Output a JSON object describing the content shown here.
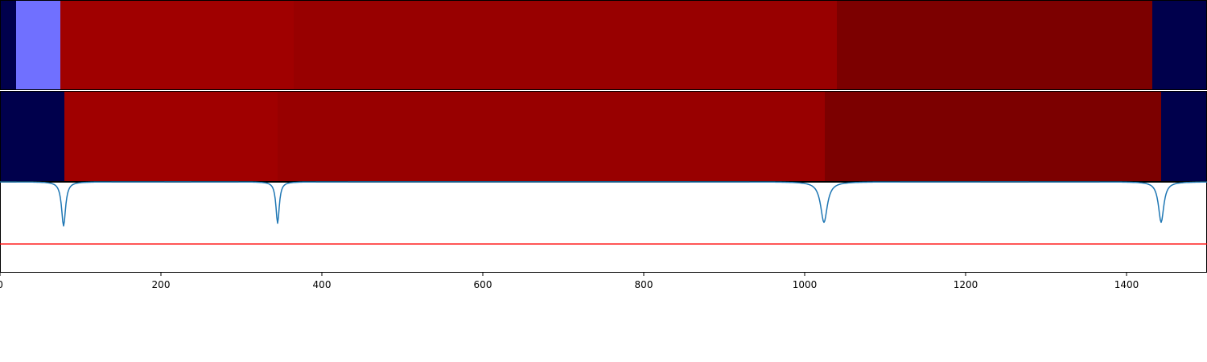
{
  "chart_data": [
    {
      "type": "heatmap",
      "title": "",
      "xlim": [
        0,
        1500
      ],
      "segments": [
        {
          "start": 0,
          "end": 20,
          "color": "#00004c"
        },
        {
          "start": 20,
          "end": 75,
          "color": "#7070ff"
        },
        {
          "start": 75,
          "end": 365,
          "color": "#a00000"
        },
        {
          "start": 365,
          "end": 1040,
          "color": "#980000"
        },
        {
          "start": 1040,
          "end": 1432,
          "color": "#7c0000"
        },
        {
          "start": 1432,
          "end": 1500,
          "color": "#00004c"
        }
      ]
    },
    {
      "type": "heatmap",
      "title": "",
      "xlim": [
        0,
        1500
      ],
      "segments": [
        {
          "start": 0,
          "end": 80,
          "color": "#00004c"
        },
        {
          "start": 80,
          "end": 345,
          "color": "#a00000"
        },
        {
          "start": 345,
          "end": 1025,
          "color": "#980000"
        },
        {
          "start": 1025,
          "end": 1443,
          "color": "#7c0000"
        },
        {
          "start": 1443,
          "end": 1500,
          "color": "#00004c"
        }
      ]
    },
    {
      "type": "line",
      "title": "",
      "xlabel": "",
      "ylabel": "",
      "xlim": [
        0,
        1500
      ],
      "ylim": [
        0.0,
        1.0
      ],
      "grid": false,
      "x_ticks": [
        0,
        200,
        400,
        600,
        800,
        1000,
        1200,
        1400
      ],
      "x_tick_labels": [
        "0",
        "200",
        "400",
        "600",
        "800",
        "1000",
        "1200",
        "1400"
      ],
      "series": [
        {
          "color": "#1f77b4",
          "baseline": 1.0,
          "dips": [
            {
              "x": 79,
              "depth": 0.49,
              "width": 3
            },
            {
              "x": 345,
              "depth": 0.46,
              "width": 2.5
            },
            {
              "x": 1024,
              "depth": 0.45,
              "width": 5
            },
            {
              "x": 1443,
              "depth": 0.45,
              "width": 4
            }
          ]
        }
      ],
      "threshold": {
        "y": 0.31,
        "color": "#ff0000"
      }
    }
  ]
}
